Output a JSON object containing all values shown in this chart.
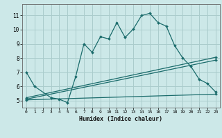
{
  "xlabel": "Humidex (Indice chaleur)",
  "bg_color": "#cce8e8",
  "line_color": "#1a6b6b",
  "grid_color": "#aacccc",
  "xlim": [
    -0.5,
    23.5
  ],
  "ylim": [
    4.5,
    11.8
  ],
  "xticks": [
    0,
    1,
    2,
    3,
    4,
    5,
    6,
    7,
    8,
    9,
    10,
    11,
    12,
    13,
    14,
    15,
    16,
    17,
    18,
    19,
    20,
    21,
    22,
    23
  ],
  "yticks": [
    5,
    6,
    7,
    8,
    9,
    10,
    11
  ],
  "line1_x": [
    0,
    1,
    3,
    4,
    5,
    6,
    7,
    8,
    9,
    10,
    11,
    12,
    13,
    14,
    15,
    16,
    17,
    18,
    19,
    20,
    21,
    22,
    23
  ],
  "line1_y": [
    7.0,
    6.0,
    5.2,
    5.1,
    4.85,
    6.7,
    9.0,
    8.4,
    9.5,
    9.35,
    10.5,
    9.45,
    10.05,
    11.0,
    11.15,
    10.5,
    10.25,
    8.9,
    8.0,
    7.4,
    6.5,
    6.2,
    5.6
  ],
  "line2_x": [
    0,
    23
  ],
  "line2_y": [
    5.05,
    5.45
  ],
  "line3_x": [
    0,
    23
  ],
  "line3_y": [
    5.1,
    7.85
  ],
  "line4_x": [
    0,
    23
  ],
  "line4_y": [
    5.2,
    8.05
  ]
}
